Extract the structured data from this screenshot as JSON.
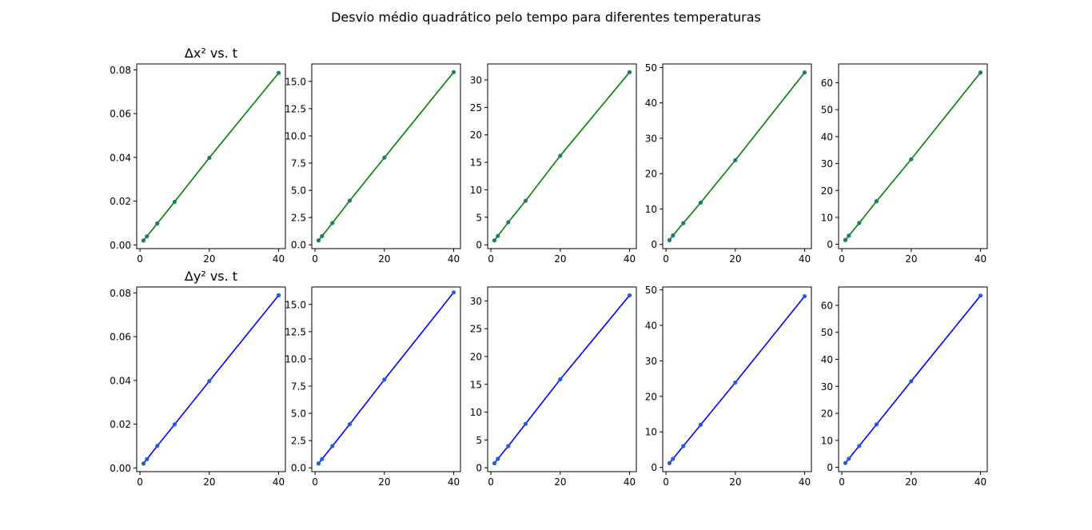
{
  "figure": {
    "suptitle": "Desvio médio quadrático pelo tempo para diferentes temperaturas"
  },
  "colors": {
    "dx_line": "#008000",
    "dx_marker": "#1f7a6e",
    "dy_line": "#0000ff",
    "dy_marker": "#1f5fd0",
    "axes": "#000000",
    "background": "#ffffff"
  },
  "chart_data": [
    {
      "type": "line",
      "row": "dx",
      "title": "Δx² vs. t",
      "x": [
        1,
        2,
        5,
        10,
        20,
        40
      ],
      "y": [
        0.002,
        0.0039,
        0.0098,
        0.0197,
        0.0398,
        0.0786
      ],
      "xlim": [
        -0.95,
        41.95
      ],
      "ylim": [
        -0.0017,
        0.0827
      ],
      "xticks": [
        0,
        20,
        40
      ],
      "yticks": [
        0.0,
        0.02,
        0.04,
        0.06,
        0.08
      ],
      "xticklabels": [
        "0",
        "20",
        "40"
      ],
      "yticklabels": [
        "0.00",
        "0.02",
        "0.04",
        "0.06",
        "0.08"
      ]
    },
    {
      "type": "line",
      "row": "dx",
      "title": "",
      "x": [
        1,
        2,
        5,
        10,
        20,
        40
      ],
      "y": [
        0.4,
        0.8,
        2.0,
        4.05,
        8.0,
        15.85
      ],
      "xlim": [
        -0.95,
        41.95
      ],
      "ylim": [
        -0.35,
        16.6
      ],
      "xticks": [
        0,
        20,
        40
      ],
      "yticks": [
        0.0,
        2.5,
        5.0,
        7.5,
        10.0,
        12.5,
        15.0
      ],
      "xticklabels": [
        "0",
        "20",
        "40"
      ],
      "yticklabels": [
        "0.0",
        "2.5",
        "5.0",
        "7.5",
        "10.0",
        "12.5",
        "15.0"
      ]
    },
    {
      "type": "line",
      "row": "dx",
      "title": "",
      "x": [
        1,
        2,
        5,
        10,
        20,
        40
      ],
      "y": [
        0.8,
        1.6,
        4.1,
        8.0,
        16.2,
        31.4
      ],
      "xlim": [
        -0.95,
        41.95
      ],
      "ylim": [
        -0.7,
        32.9
      ],
      "xticks": [
        0,
        20,
        40
      ],
      "yticks": [
        0,
        5,
        10,
        15,
        20,
        25,
        30
      ],
      "xticklabels": [
        "0",
        "20",
        "40"
      ],
      "yticklabels": [
        "0",
        "5",
        "10",
        "15",
        "20",
        "25",
        "30"
      ]
    },
    {
      "type": "line",
      "row": "dx",
      "title": "",
      "x": [
        1,
        2,
        5,
        10,
        20,
        40
      ],
      "y": [
        1.2,
        2.5,
        6.0,
        11.8,
        23.8,
        48.6
      ],
      "xlim": [
        -0.95,
        41.95
      ],
      "ylim": [
        -1.2,
        51.0
      ],
      "xticks": [
        0,
        20,
        40
      ],
      "yticks": [
        0,
        10,
        20,
        30,
        40,
        50
      ],
      "xticklabels": [
        "0",
        "20",
        "40"
      ],
      "yticklabels": [
        "0",
        "10",
        "20",
        "30",
        "40",
        "50"
      ]
    },
    {
      "type": "line",
      "row": "dx",
      "title": "",
      "x": [
        1,
        2,
        5,
        10,
        20,
        40
      ],
      "y": [
        1.6,
        3.2,
        7.9,
        16.0,
        31.6,
        63.8
      ],
      "xlim": [
        -0.95,
        41.95
      ],
      "ylim": [
        -1.6,
        67.0
      ],
      "xticks": [
        0,
        20,
        40
      ],
      "yticks": [
        0,
        10,
        20,
        30,
        40,
        50,
        60
      ],
      "xticklabels": [
        "0",
        "20",
        "40"
      ],
      "yticklabels": [
        "0",
        "10",
        "20",
        "30",
        "40",
        "50",
        "60"
      ]
    },
    {
      "type": "line",
      "row": "dy",
      "title": "Δy² vs. t",
      "x": [
        1,
        2,
        5,
        10,
        20,
        40
      ],
      "y": [
        0.002,
        0.004,
        0.0101,
        0.0199,
        0.0397,
        0.0789
      ],
      "xlim": [
        -0.95,
        41.95
      ],
      "ylim": [
        -0.0017,
        0.0827
      ],
      "xticks": [
        0,
        20,
        40
      ],
      "yticks": [
        0.0,
        0.02,
        0.04,
        0.06,
        0.08
      ],
      "xticklabels": [
        "0",
        "20",
        "40"
      ],
      "yticklabels": [
        "0.00",
        "0.02",
        "0.04",
        "0.06",
        "0.08"
      ]
    },
    {
      "type": "line",
      "row": "dy",
      "title": "",
      "x": [
        1,
        2,
        5,
        10,
        20,
        40
      ],
      "y": [
        0.4,
        0.8,
        2.0,
        4.0,
        8.1,
        16.1
      ],
      "xlim": [
        -0.95,
        41.95
      ],
      "ylim": [
        -0.35,
        16.6
      ],
      "xticks": [
        0,
        20,
        40
      ],
      "yticks": [
        0.0,
        2.5,
        5.0,
        7.5,
        10.0,
        12.5,
        15.0
      ],
      "xticklabels": [
        "0",
        "20",
        "40"
      ],
      "yticklabels": [
        "0.0",
        "2.5",
        "5.0",
        "7.5",
        "10.0",
        "12.5",
        "15.0"
      ]
    },
    {
      "type": "line",
      "row": "dy",
      "title": "",
      "x": [
        1,
        2,
        5,
        10,
        20,
        40
      ],
      "y": [
        0.8,
        1.6,
        3.9,
        7.9,
        15.9,
        31.0
      ],
      "xlim": [
        -0.95,
        41.95
      ],
      "ylim": [
        -0.7,
        32.5
      ],
      "xticks": [
        0,
        20,
        40
      ],
      "yticks": [
        0,
        5,
        10,
        15,
        20,
        25,
        30
      ],
      "xticklabels": [
        "0",
        "20",
        "40"
      ],
      "yticklabels": [
        "0",
        "5",
        "10",
        "15",
        "20",
        "25",
        "30"
      ]
    },
    {
      "type": "line",
      "row": "dy",
      "title": "",
      "x": [
        1,
        2,
        5,
        10,
        20,
        40
      ],
      "y": [
        1.2,
        2.4,
        6.0,
        12.0,
        23.9,
        48.2
      ],
      "xlim": [
        -0.95,
        41.95
      ],
      "ylim": [
        -1.2,
        50.8
      ],
      "xticks": [
        0,
        20,
        40
      ],
      "yticks": [
        0,
        10,
        20,
        30,
        40,
        50
      ],
      "xticklabels": [
        "0",
        "20",
        "40"
      ],
      "yticklabels": [
        "0",
        "10",
        "20",
        "30",
        "40",
        "50"
      ]
    },
    {
      "type": "line",
      "row": "dy",
      "title": "",
      "x": [
        1,
        2,
        5,
        10,
        20,
        40
      ],
      "y": [
        1.6,
        3.2,
        7.9,
        15.9,
        31.9,
        63.6
      ],
      "xlim": [
        -0.95,
        41.95
      ],
      "ylim": [
        -1.6,
        66.8
      ],
      "xticks": [
        0,
        20,
        40
      ],
      "yticks": [
        0,
        10,
        20,
        30,
        40,
        50,
        60
      ],
      "xticklabels": [
        "0",
        "20",
        "40"
      ],
      "yticklabels": [
        "0",
        "10",
        "20",
        "30",
        "40",
        "50",
        "60"
      ]
    }
  ]
}
